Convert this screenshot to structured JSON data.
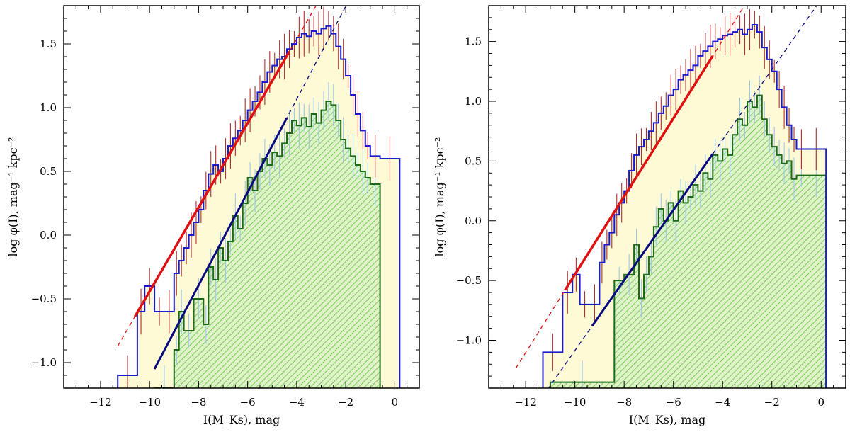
{
  "figure": {
    "background": "#ffffff"
  },
  "chart_data": [
    {
      "type": "histogram",
      "panel": "left",
      "xlabel": "I(M_Ks), mag",
      "ylabel": "log φ(I), mag⁻¹ kpc⁻²",
      "xlim": [
        -13.5,
        1.0
      ],
      "ylim": [
        -1.2,
        1.8
      ],
      "xticks": [
        -12,
        -10,
        -8,
        -6,
        -4,
        -2,
        0
      ],
      "yticks": [
        -1.0,
        -0.5,
        0.0,
        0.5,
        1.0,
        1.5
      ],
      "xtick_labels": [
        "−12",
        "−10",
        "−8",
        "−6",
        "−4",
        "−2",
        "0"
      ],
      "ytick_labels": [
        "−1.0",
        "−0.5",
        "0.0",
        "0.5",
        "1.0",
        "1.5"
      ],
      "colors": {
        "total_line": "#1a1acc",
        "total_fill": "#fffad6",
        "subset_line": "#1b6b1b",
        "subset_hatch": "#8fd46a",
        "subset_fill": "#dff3c8",
        "fit_total": "#e01010",
        "fit_subset": "#0a0a80",
        "err_total": "#b03030",
        "err_subset": "#9cc8ee"
      },
      "series": [
        {
          "name": "total",
          "edges": [
            -11.3,
            -10.5,
            -10.2,
            -9.8,
            -9.4,
            -9.0,
            -8.8,
            -8.6,
            -8.4,
            -8.2,
            -8.0,
            -7.8,
            -7.6,
            -7.4,
            -7.2,
            -7.0,
            -6.8,
            -6.6,
            -6.4,
            -6.2,
            -6.0,
            -5.8,
            -5.6,
            -5.4,
            -5.2,
            -5.0,
            -4.8,
            -4.6,
            -4.4,
            -4.2,
            -4.0,
            -3.8,
            -3.6,
            -3.4,
            -3.2,
            -3.0,
            -2.8,
            -2.6,
            -2.4,
            -2.2,
            -2.0,
            -1.8,
            -1.6,
            -1.4,
            -1.2,
            -1.0,
            -0.6,
            0.2
          ],
          "values": [
            -1.1,
            -0.6,
            -0.4,
            -0.6,
            -0.6,
            -0.3,
            -0.2,
            -0.1,
            0.0,
            0.1,
            0.2,
            0.35,
            0.48,
            0.55,
            0.5,
            0.6,
            0.7,
            0.76,
            0.82,
            0.9,
            0.98,
            1.05,
            1.12,
            1.2,
            1.28,
            1.33,
            1.38,
            1.4,
            1.46,
            1.5,
            1.55,
            1.58,
            1.56,
            1.6,
            1.58,
            1.62,
            1.64,
            1.58,
            1.48,
            1.38,
            1.25,
            1.1,
            0.95,
            0.82,
            0.7,
            0.62,
            0.6
          ]
        },
        {
          "name": "subset",
          "edges": [
            -9.8,
            -9.0,
            -8.8,
            -8.6,
            -8.2,
            -7.8,
            -7.6,
            -7.4,
            -7.2,
            -7.0,
            -6.8,
            -6.6,
            -6.4,
            -6.2,
            -6.0,
            -5.8,
            -5.6,
            -5.4,
            -5.2,
            -5.0,
            -4.8,
            -4.6,
            -4.4,
            -4.2,
            -4.0,
            -3.8,
            -3.6,
            -3.4,
            -3.2,
            -3.0,
            -2.8,
            -2.6,
            -2.4,
            -2.2,
            -2.0,
            -1.8,
            -1.6,
            -1.4,
            -1.2,
            -1.0,
            -0.6
          ],
          "values": [
            -1.2,
            -0.9,
            -0.6,
            -0.75,
            -0.5,
            -0.7,
            -0.25,
            -0.35,
            -0.1,
            -0.2,
            -0.05,
            0.15,
            0.05,
            0.25,
            0.45,
            0.35,
            0.5,
            0.6,
            0.55,
            0.65,
            0.62,
            0.72,
            0.8,
            0.9,
            0.86,
            0.92,
            0.85,
            0.95,
            0.88,
            0.98,
            1.05,
            1.02,
            0.9,
            0.75,
            0.68,
            0.62,
            0.55,
            0.5,
            0.45,
            0.4
          ]
        },
        {
          "name": "fit_total",
          "x": [
            -10.6,
            -4.3
          ],
          "y": [
            -0.64,
            1.44
          ],
          "extend_x": [
            -11.3,
            -2.4
          ]
        },
        {
          "name": "fit_subset",
          "x": [
            -9.8,
            -4.4
          ],
          "y": [
            -1.05,
            0.92
          ],
          "extend_x": [
            -9.8,
            -1.1
          ]
        }
      ]
    },
    {
      "type": "histogram",
      "panel": "right",
      "xlabel": "I(M_Ks), mag",
      "ylabel": "log φ(I), mag⁻¹ kpc⁻²",
      "xlim": [
        -13.5,
        1.0
      ],
      "ylim": [
        -1.4,
        1.8
      ],
      "xticks": [
        -12,
        -10,
        -8,
        -6,
        -4,
        -2,
        0
      ],
      "yticks": [
        -1.0,
        -0.5,
        0.0,
        0.5,
        1.0,
        1.5
      ],
      "xtick_labels": [
        "−12",
        "−10",
        "−8",
        "−6",
        "−4",
        "−2",
        "0"
      ],
      "ytick_labels": [
        "−1.0",
        "−0.5",
        "0.0",
        "0.5",
        "1.0",
        "1.5"
      ],
      "series": [
        {
          "name": "total",
          "edges": [
            -11.3,
            -10.5,
            -10.1,
            -9.8,
            -9.4,
            -9.0,
            -8.8,
            -8.6,
            -8.4,
            -8.2,
            -8.0,
            -7.8,
            -7.6,
            -7.4,
            -7.2,
            -7.0,
            -6.8,
            -6.6,
            -6.4,
            -6.2,
            -6.0,
            -5.8,
            -5.6,
            -5.4,
            -5.2,
            -5.0,
            -4.8,
            -4.6,
            -4.4,
            -4.2,
            -4.0,
            -3.8,
            -3.6,
            -3.4,
            -3.2,
            -3.0,
            -2.8,
            -2.6,
            -2.4,
            -2.2,
            -2.0,
            -1.8,
            -1.6,
            -1.4,
            -1.2,
            -1.0,
            -0.6,
            0.2
          ],
          "values": [
            -1.1,
            -0.6,
            -0.45,
            -0.7,
            -0.7,
            -0.35,
            -0.2,
            -0.1,
            0.05,
            0.15,
            0.25,
            0.42,
            0.55,
            0.62,
            0.68,
            0.75,
            0.82,
            0.9,
            0.96,
            1.05,
            1.1,
            1.18,
            1.22,
            1.26,
            1.3,
            1.38,
            1.42,
            1.46,
            1.5,
            1.52,
            1.55,
            1.56,
            1.58,
            1.6,
            1.56,
            1.6,
            1.64,
            1.58,
            1.45,
            1.35,
            1.25,
            1.1,
            0.95,
            0.8,
            0.68,
            0.6,
            0.6
          ]
        },
        {
          "name": "subset",
          "edges": [
            -11.0,
            -8.4,
            -8.0,
            -7.6,
            -7.4,
            -7.2,
            -7.0,
            -6.8,
            -6.6,
            -6.4,
            -6.2,
            -6.0,
            -5.8,
            -5.6,
            -5.4,
            -5.2,
            -5.0,
            -4.8,
            -4.6,
            -4.4,
            -4.2,
            -4.0,
            -3.8,
            -3.6,
            -3.4,
            -3.2,
            -3.0,
            -2.8,
            -2.6,
            -2.4,
            -2.2,
            -2.0,
            -1.8,
            -1.6,
            -1.4,
            -1.2,
            -1.0,
            -0.6,
            0.2
          ],
          "values": [
            -1.35,
            -0.5,
            -0.45,
            -0.2,
            -0.65,
            -0.45,
            -0.3,
            -0.05,
            0.1,
            0.0,
            0.15,
            0.0,
            0.25,
            0.15,
            0.2,
            0.3,
            0.25,
            0.4,
            0.35,
            0.55,
            0.5,
            0.6,
            0.55,
            0.72,
            0.85,
            0.8,
            1.0,
            0.95,
            1.05,
            0.85,
            0.72,
            0.62,
            0.55,
            0.48,
            0.5,
            0.35,
            0.38,
            0.38
          ]
        },
        {
          "name": "fit_total",
          "x": [
            -10.4,
            -4.4
          ],
          "y": [
            -0.58,
            1.38
          ],
          "extend_x": [
            -12.4,
            -2.9
          ]
        },
        {
          "name": "fit_subset",
          "x": [
            -9.3,
            -4.4
          ],
          "y": [
            -0.88,
            0.56
          ],
          "extend_x": [
            -11.3,
            0.2
          ]
        }
      ]
    }
  ]
}
